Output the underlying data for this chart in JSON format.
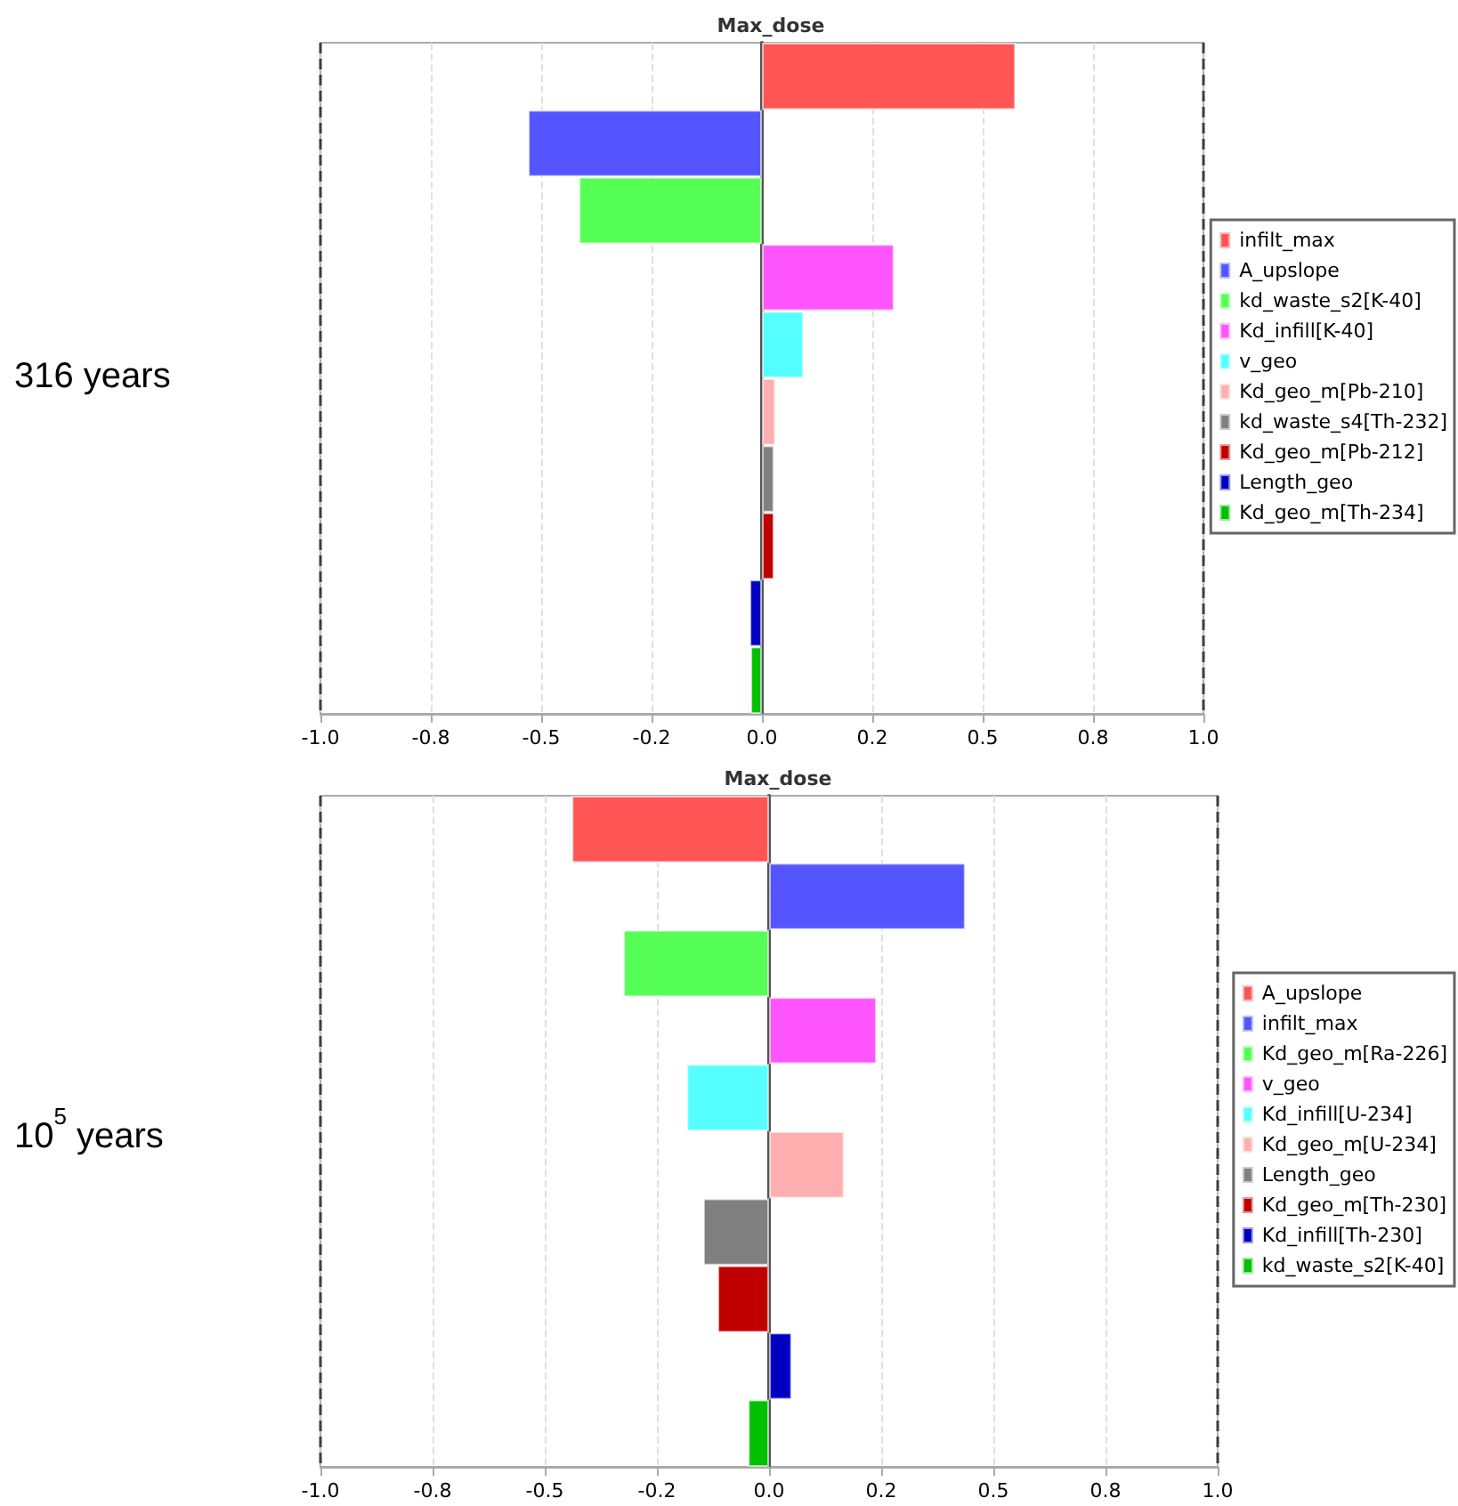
{
  "chart_data": [
    {
      "type": "bar",
      "orientation": "horizontal",
      "title": "Max_dose",
      "ylabel": "316 years",
      "categories": [
        null,
        null,
        null,
        null,
        null,
        null,
        null,
        null,
        null,
        null
      ],
      "series": [
        {
          "name": "infilt_max",
          "color": "#ff5555",
          "values": [
            0.575,
            null,
            null,
            null,
            null,
            null,
            null,
            null,
            null,
            null
          ]
        },
        {
          "name": "A_upslope",
          "color": "#5555ff",
          "values": [
            null,
            -0.53,
            null,
            null,
            null,
            null,
            null,
            null,
            null,
            null
          ]
        },
        {
          "name": "kd_waste_s2[K-40]",
          "color": "#55ff55",
          "values": [
            null,
            null,
            -0.415,
            null,
            null,
            null,
            null,
            null,
            null,
            null
          ]
        },
        {
          "name": "Kd_infill[K-40]",
          "color": "#ff55ff",
          "values": [
            null,
            null,
            null,
            0.3,
            null,
            null,
            null,
            null,
            null,
            null
          ]
        },
        {
          "name": "v_geo",
          "color": "#55ffff",
          "values": [
            null,
            null,
            null,
            null,
            0.095,
            null,
            null,
            null,
            null,
            null
          ]
        },
        {
          "name": "Kd_geo_m[Pb-210]",
          "color": "#ffafaf",
          "values": [
            null,
            null,
            null,
            null,
            null,
            0.031,
            null,
            null,
            null,
            null
          ]
        },
        {
          "name": "kd_waste_s4[Th-232]",
          "color": "#808080",
          "values": [
            null,
            null,
            null,
            null,
            null,
            null,
            0.028,
            null,
            null,
            null
          ]
        },
        {
          "name": "Kd_geo_m[Pb-212]",
          "color": "#c00000",
          "values": [
            null,
            null,
            null,
            null,
            null,
            null,
            null,
            0.028,
            null,
            null
          ]
        },
        {
          "name": "Length_geo",
          "color": "#0000c0",
          "values": [
            null,
            null,
            null,
            null,
            null,
            null,
            null,
            null,
            -0.028,
            null
          ]
        },
        {
          "name": "Kd_geo_m[Th-234]",
          "color": "#00c000",
          "values": [
            null,
            null,
            null,
            null,
            null,
            null,
            null,
            null,
            null,
            -0.026
          ]
        }
      ],
      "xlim": [
        -1,
        1
      ],
      "xticks": [
        {
          "value": -1,
          "label": "-1.0"
        },
        {
          "value": -0.75,
          "label": "-0.8"
        },
        {
          "value": -0.5,
          "label": "-0.5"
        },
        {
          "value": -0.25,
          "label": "-0.2"
        },
        {
          "value": 0,
          "label": "0.0"
        },
        {
          "value": 0.25,
          "label": "0.2"
        },
        {
          "value": 0.5,
          "label": "0.5"
        },
        {
          "value": 0.75,
          "label": "0.8"
        },
        {
          "value": 1,
          "label": "1.0"
        }
      ],
      "tick_labels": "x",
      "ref_lines": [
        {
          "axis": "x",
          "value": -1,
          "line_style": "dashed",
          "color": "#404040"
        },
        {
          "axis": "x",
          "value": 1,
          "line_style": "dashed",
          "color": "#404040"
        }
      ],
      "grid": "x",
      "legend": "right"
    },
    {
      "type": "bar",
      "orientation": "horizontal",
      "title": "Max_dose",
      "ylabel": "10$^{5}$ years",
      "categories": [
        null,
        null,
        null,
        null,
        null,
        null,
        null,
        null,
        null,
        null
      ],
      "series": [
        {
          "name": "A_upslope",
          "color": "#ff5555",
          "values": [
            -0.44,
            null,
            null,
            null,
            null,
            null,
            null,
            null,
            null,
            null
          ]
        },
        {
          "name": "infilt_max",
          "color": "#5555ff",
          "values": [
            null,
            0.438,
            null,
            null,
            null,
            null,
            null,
            null,
            null,
            null
          ]
        },
        {
          "name": "Kd_geo_m[Ra-226]",
          "color": "#55ff55",
          "values": [
            null,
            null,
            -0.325,
            null,
            null,
            null,
            null,
            null,
            null,
            null
          ]
        },
        {
          "name": "v_geo",
          "color": "#ff55ff",
          "values": [
            null,
            null,
            null,
            0.24,
            null,
            null,
            null,
            null,
            null,
            null
          ]
        },
        {
          "name": "Kd_infill[U-234]",
          "color": "#55ffff",
          "values": [
            null,
            null,
            null,
            null,
            -0.184,
            null,
            null,
            null,
            null,
            null
          ]
        },
        {
          "name": "Kd_geo_m[U-234]",
          "color": "#ffafaf",
          "values": [
            null,
            null,
            null,
            null,
            null,
            0.168,
            null,
            null,
            null,
            null
          ]
        },
        {
          "name": "Length_geo",
          "color": "#808080",
          "values": [
            null,
            null,
            null,
            null,
            null,
            null,
            -0.147,
            null,
            null,
            null
          ]
        },
        {
          "name": "Kd_geo_m[Th-230]",
          "color": "#c00000",
          "values": [
            null,
            null,
            null,
            null,
            null,
            null,
            null,
            -0.115,
            null,
            null
          ]
        },
        {
          "name": "Kd_infill[Th-230]",
          "color": "#0000c0",
          "values": [
            null,
            null,
            null,
            null,
            null,
            null,
            null,
            null,
            0.051,
            null
          ]
        },
        {
          "name": "kd_waste_s2[K-40]",
          "color": "#00c000",
          "values": [
            null,
            null,
            null,
            null,
            null,
            null,
            null,
            null,
            null,
            -0.047
          ]
        }
      ],
      "xlim": [
        -1,
        1
      ],
      "xticks": [
        {
          "value": -1,
          "label": "-1.0"
        },
        {
          "value": -0.75,
          "label": "-0.8"
        },
        {
          "value": -0.5,
          "label": "-0.5"
        },
        {
          "value": -0.25,
          "label": "-0.2"
        },
        {
          "value": 0,
          "label": "0.0"
        },
        {
          "value": 0.25,
          "label": "0.2"
        },
        {
          "value": 0.5,
          "label": "0.5"
        },
        {
          "value": 0.75,
          "label": "0.8"
        },
        {
          "value": 1,
          "label": "1.0"
        }
      ],
      "tick_labels": "x",
      "ref_lines": [
        {
          "axis": "x",
          "value": -1,
          "line_style": "dashed",
          "color": "#404040"
        },
        {
          "axis": "x",
          "value": 1,
          "line_style": "dashed",
          "color": "#404040"
        }
      ],
      "grid": "x",
      "legend": "right"
    }
  ]
}
